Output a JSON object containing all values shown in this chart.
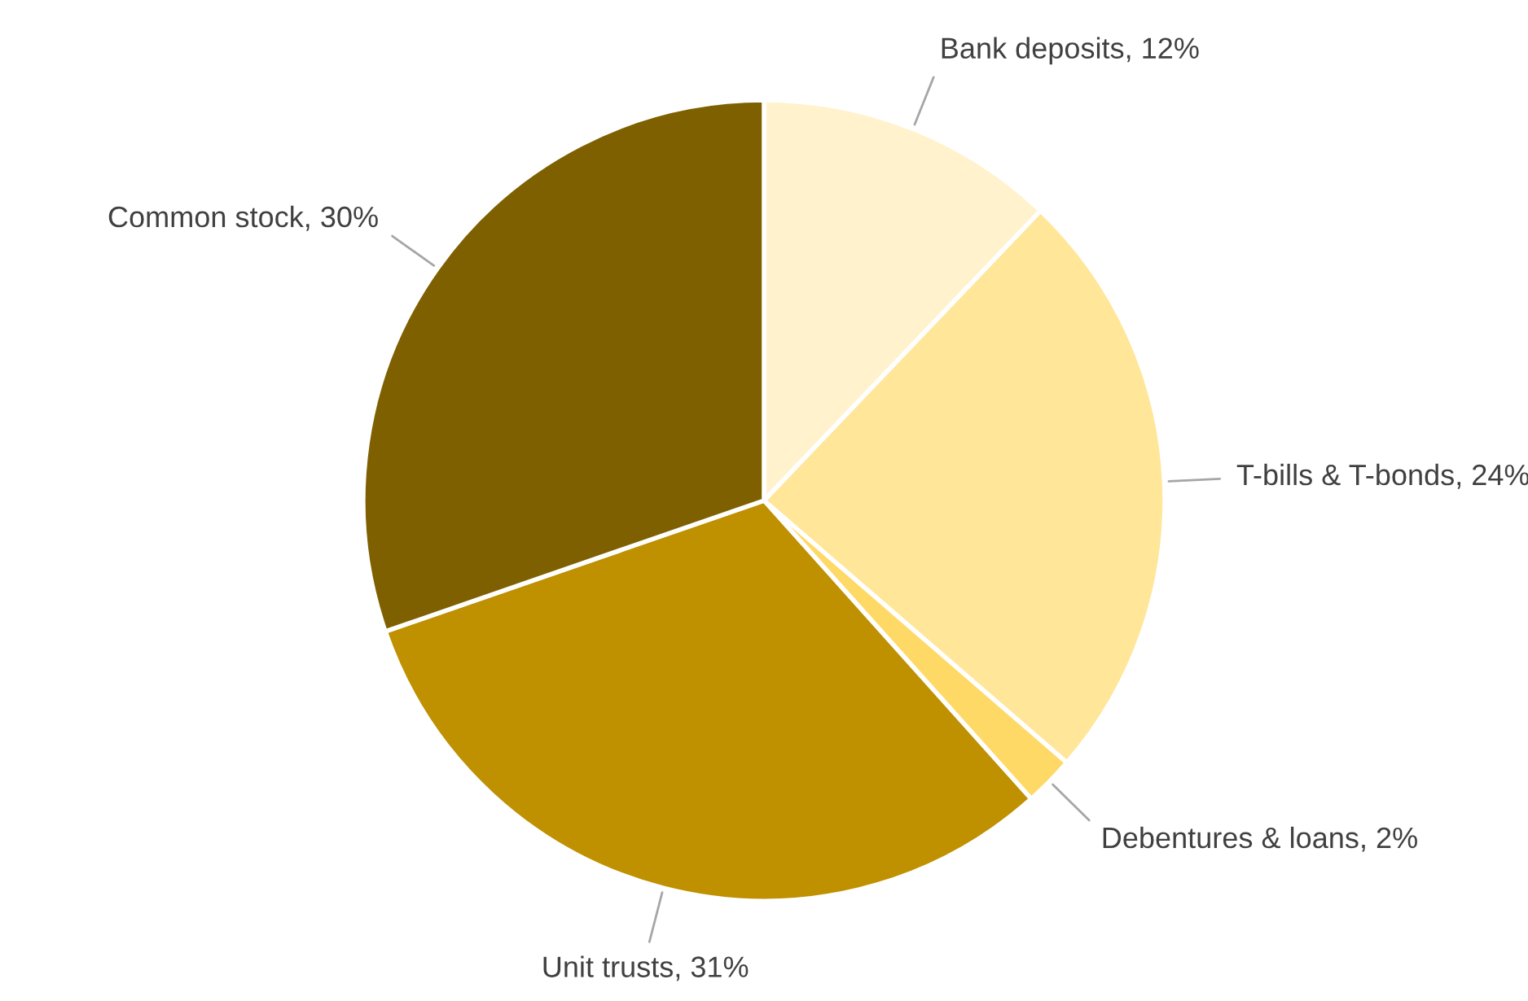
{
  "chart_data": {
    "type": "pie",
    "categories": [
      "Bank deposits",
      "T-bills & T-bonds",
      "Debentures & loans",
      "Unit trusts",
      "Common stock"
    ],
    "values": [
      12,
      24,
      2,
      31,
      30
    ],
    "value_labels": [
      "12%",
      "24%",
      "2%",
      "31%",
      "30%"
    ],
    "colors": [
      "#fff2cc",
      "#ffe699",
      "#ffd966",
      "#bf9000",
      "#7f6000"
    ]
  }
}
